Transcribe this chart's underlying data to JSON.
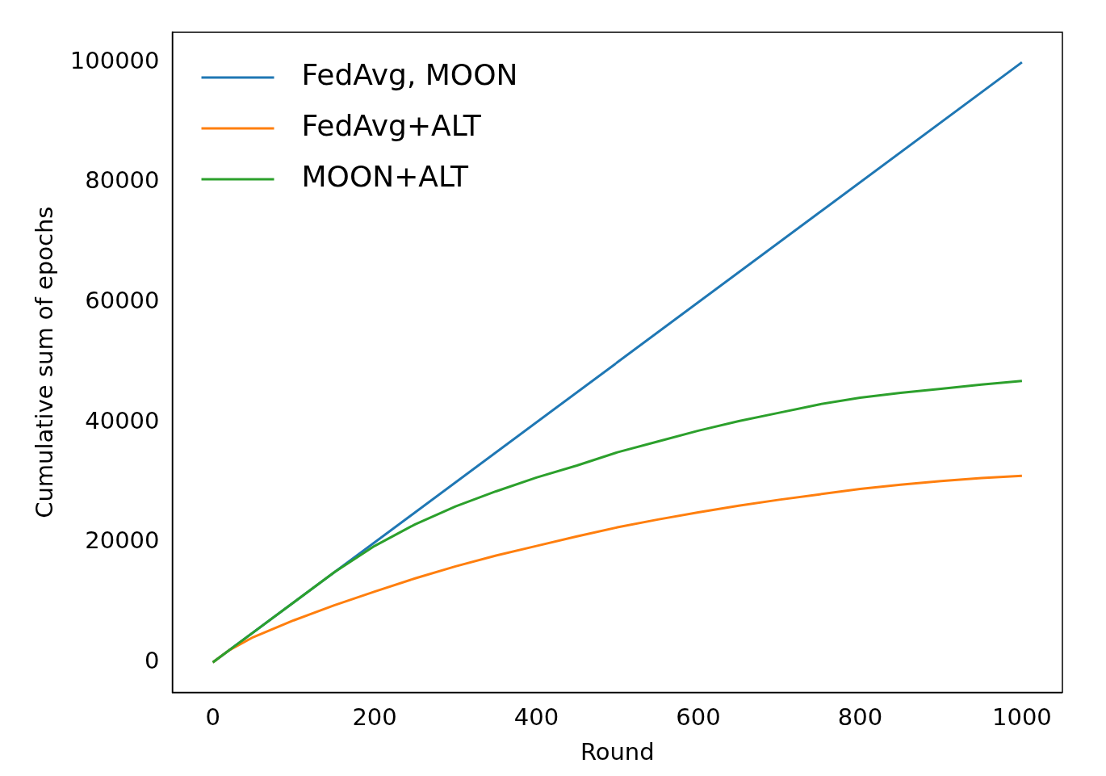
{
  "chart_data": {
    "type": "line",
    "xlabel": "Round",
    "ylabel": "Cumulative sum of epochs",
    "xlim": [
      -50,
      1050
    ],
    "ylim": [
      -5000,
      105000
    ],
    "xticks": [
      0,
      200,
      400,
      600,
      800,
      1000
    ],
    "yticks": [
      0,
      20000,
      40000,
      60000,
      80000,
      100000
    ],
    "legend": "top left",
    "grid": false,
    "marker": "none",
    "line_style": "solid",
    "series": [
      {
        "name": "FedAvg, MOON",
        "color": "#1f77b4",
        "x": [
          0,
          1000
        ],
        "values": [
          0,
          100000
        ]
      },
      {
        "name": "FedAvg+ALT",
        "color": "#ff7f0e",
        "x": [
          0,
          20,
          50,
          100,
          150,
          200,
          250,
          300,
          350,
          400,
          450,
          500,
          550,
          600,
          650,
          700,
          750,
          800,
          850,
          900,
          950,
          1000
        ],
        "values": [
          0,
          2000,
          4200,
          7000,
          9500,
          11800,
          14000,
          16000,
          17800,
          19400,
          21000,
          22500,
          23800,
          25000,
          26100,
          27100,
          28000,
          28900,
          29600,
          30200,
          30700,
          31100
        ]
      },
      {
        "name": "MOON+ALT",
        "color": "#2ca02c",
        "x": [
          0,
          50,
          100,
          150,
          200,
          250,
          300,
          350,
          400,
          450,
          500,
          550,
          600,
          650,
          700,
          750,
          800,
          850,
          900,
          950,
          1000
        ],
        "values": [
          0,
          5000,
          10000,
          15000,
          19400,
          23000,
          26000,
          28500,
          30800,
          32800,
          35000,
          36800,
          38600,
          40200,
          41600,
          43000,
          44100,
          44900,
          45600,
          46300,
          46900
        ]
      }
    ]
  }
}
